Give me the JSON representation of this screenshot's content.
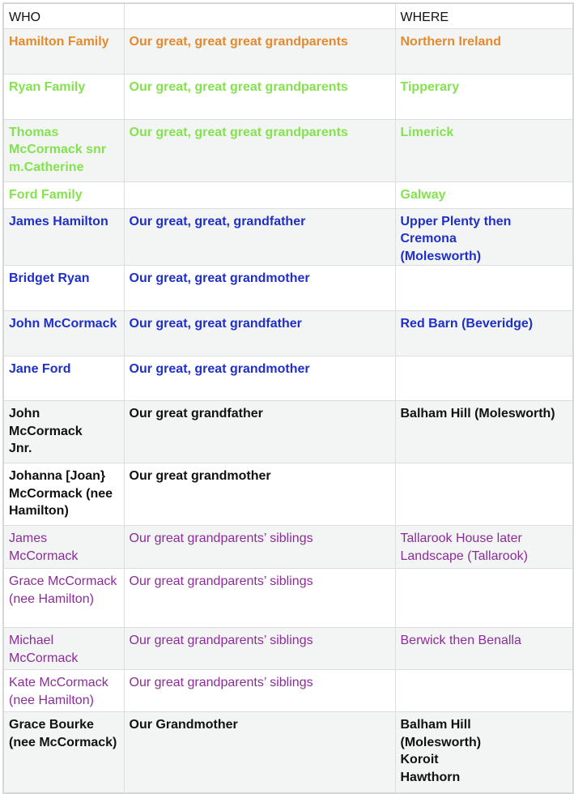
{
  "header": {
    "who": "WHO",
    "relation": "",
    "where": "WHERE"
  },
  "colors": {
    "orange": "#e48a2c",
    "green": "#84e24e",
    "blue": "#1f2fc8",
    "black": "#111111",
    "purple": "#8c2c98"
  },
  "rows": [
    {
      "who": "Hamilton Family",
      "relation": "Our great, great great  grandparents",
      "where": "Northern Ireland",
      "color": "orange",
      "bold": true
    },
    {
      "who": "Ryan Family",
      "relation": "Our great, great great grandparents",
      "where": "Tipperary",
      "color": "green",
      "bold": true
    },
    {
      "who": "Thomas McCormack snr m.Catherine",
      "relation": "Our great, great great grandparents",
      "where": "Limerick",
      "color": "green",
      "bold": true
    },
    {
      "who": "Ford Family",
      "relation": "",
      "where": "Galway",
      "color": "green",
      "bold": true
    },
    {
      "who": "James Hamilton",
      "relation": "Our great, great, grandfather",
      "where": "Upper Plenty then Cremona (Molesworth)",
      "color": "blue",
      "bold": true
    },
    {
      "who": "Bridget Ryan",
      "relation": "Our great, great grandmother",
      "where": "",
      "color": "blue",
      "bold": true
    },
    {
      "who": "John McCormack",
      "relation": "Our great, great grandfather",
      "where": "Red Barn (Beveridge)",
      "color": "blue",
      "bold": true
    },
    {
      "who": "Jane Ford",
      "relation": "Our great, great grandmother",
      "where": "",
      "color": "blue",
      "bold": true
    },
    {
      "who": "John McCormack Jnr.",
      "relation": "Our great grandfather",
      "where": "Balham Hill (Molesworth)",
      "color": "black",
      "bold": true
    },
    {
      "who": "Johanna [Joan} McCormack (nee Hamilton)",
      "relation": "Our great grandmother",
      "where": "",
      "color": "black",
      "bold": true
    },
    {
      "who": "James McCormack",
      "relation": "Our great grandparents’ siblings",
      "where": "Tallarook House later Landscape (Tallarook)",
      "color": "purple",
      "bold": false
    },
    {
      "who": "Grace McCormack (nee Hamilton)",
      "relation": "Our great grandparents’ siblings",
      "where": "",
      "color": "purple",
      "bold": false
    },
    {
      "who": "Michael McCormack",
      "relation": "Our great grandparents’ siblings",
      "where": "Berwick then Benalla",
      "color": "purple",
      "bold": false
    },
    {
      "who": "Kate McCormack (nee Hamilton)",
      "relation": "Our great grandparents’ siblings",
      "where": "",
      "color": "purple",
      "bold": false
    },
    {
      "who": "Grace Bourke (nee McCormack)",
      "relation": "Our Grandmother",
      "where": "Balham Hill (Molesworth) Koroit Hawthorn",
      "color": "black",
      "bold": true
    }
  ]
}
